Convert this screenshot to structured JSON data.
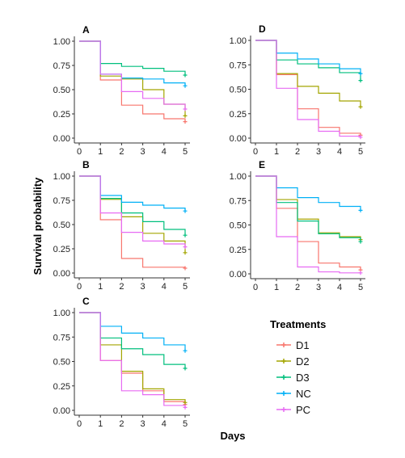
{
  "chart_data": {
    "type": "line",
    "step": true,
    "xlabel": "Days",
    "ylabel": "Survival probability",
    "x_ticks": [
      "0",
      "1",
      "2",
      "3",
      "4",
      "5"
    ],
    "y_ticks": [
      "0.00",
      "0.25",
      "0.50",
      "0.75",
      "1.00"
    ],
    "xlim": [
      0,
      5
    ],
    "ylim": [
      0,
      1
    ],
    "grid": false,
    "legend": {
      "title": "Treatments",
      "placement": "right",
      "entries": [
        {
          "name": "D1",
          "color": "#F8766D"
        },
        {
          "name": "D2",
          "color": "#A3A500"
        },
        {
          "name": "D3",
          "color": "#00BF7D"
        },
        {
          "name": "NC",
          "color": "#00B0F6"
        },
        {
          "name": "PC",
          "color": "#E76BF3"
        }
      ]
    },
    "panels": [
      {
        "label": "A",
        "x": [
          0,
          1,
          2,
          3,
          4,
          5
        ],
        "series": [
          {
            "name": "D1",
            "color": "#F8766D",
            "values": [
              1.0,
              0.6,
              0.34,
              0.25,
              0.2,
              0.17
            ]
          },
          {
            "name": "D2",
            "color": "#A3A500",
            "values": [
              1.0,
              0.64,
              0.61,
              0.5,
              0.35,
              0.23
            ]
          },
          {
            "name": "D3",
            "color": "#00BF7D",
            "values": [
              1.0,
              0.77,
              0.74,
              0.72,
              0.69,
              0.65
            ]
          },
          {
            "name": "NC",
            "color": "#00B0F6",
            "values": [
              1.0,
              0.66,
              0.62,
              0.61,
              0.57,
              0.54
            ]
          },
          {
            "name": "PC",
            "color": "#E76BF3",
            "values": [
              1.0,
              0.66,
              0.48,
              0.41,
              0.35,
              0.3
            ]
          }
        ]
      },
      {
        "label": "B",
        "x": [
          0,
          1,
          2,
          3,
          4,
          5
        ],
        "series": [
          {
            "name": "D1",
            "color": "#F8766D",
            "values": [
              1.0,
              0.55,
              0.15,
              0.06,
              0.06,
              0.05
            ]
          },
          {
            "name": "D2",
            "color": "#A3A500",
            "values": [
              1.0,
              0.76,
              0.58,
              0.41,
              0.33,
              0.21
            ]
          },
          {
            "name": "D3",
            "color": "#00BF7D",
            "values": [
              1.0,
              0.77,
              0.62,
              0.53,
              0.45,
              0.39
            ]
          },
          {
            "name": "NC",
            "color": "#00B0F6",
            "values": [
              1.0,
              0.8,
              0.73,
              0.7,
              0.67,
              0.64
            ]
          },
          {
            "name": "PC",
            "color": "#E76BF3",
            "values": [
              1.0,
              0.62,
              0.42,
              0.33,
              0.3,
              0.27
            ]
          }
        ]
      },
      {
        "label": "C",
        "x": [
          0,
          1,
          2,
          3,
          4,
          5
        ],
        "series": [
          {
            "name": "D1",
            "color": "#F8766D",
            "values": [
              1.0,
              0.51,
              0.38,
              0.2,
              0.09,
              0.06
            ]
          },
          {
            "name": "D2",
            "color": "#A3A500",
            "values": [
              1.0,
              0.67,
              0.4,
              0.22,
              0.11,
              0.08
            ]
          },
          {
            "name": "D3",
            "color": "#00BF7D",
            "values": [
              1.0,
              0.74,
              0.63,
              0.57,
              0.47,
              0.43
            ]
          },
          {
            "name": "NC",
            "color": "#00B0F6",
            "values": [
              1.0,
              0.86,
              0.79,
              0.74,
              0.67,
              0.61
            ]
          },
          {
            "name": "PC",
            "color": "#E76BF3",
            "values": [
              1.0,
              0.51,
              0.2,
              0.16,
              0.05,
              0.03
            ]
          }
        ]
      },
      {
        "label": "D",
        "x": [
          0,
          1,
          2,
          3,
          4,
          5
        ],
        "series": [
          {
            "name": "D1",
            "color": "#F8766D",
            "values": [
              1.0,
              0.65,
              0.3,
              0.11,
              0.05,
              0.03
            ]
          },
          {
            "name": "D2",
            "color": "#A3A500",
            "values": [
              1.0,
              0.66,
              0.53,
              0.46,
              0.38,
              0.32
            ]
          },
          {
            "name": "D3",
            "color": "#00BF7D",
            "values": [
              1.0,
              0.8,
              0.76,
              0.72,
              0.67,
              0.59
            ]
          },
          {
            "name": "NC",
            "color": "#00B0F6",
            "values": [
              1.0,
              0.87,
              0.81,
              0.76,
              0.71,
              0.66
            ]
          },
          {
            "name": "PC",
            "color": "#E76BF3",
            "values": [
              1.0,
              0.51,
              0.19,
              0.07,
              0.02,
              0.01
            ]
          }
        ]
      },
      {
        "label": "E",
        "x": [
          0,
          1,
          2,
          3,
          4,
          5
        ],
        "series": [
          {
            "name": "D1",
            "color": "#F8766D",
            "values": [
              1.0,
              0.67,
              0.33,
              0.11,
              0.07,
              0.04
            ]
          },
          {
            "name": "D2",
            "color": "#A3A500",
            "values": [
              1.0,
              0.76,
              0.56,
              0.42,
              0.38,
              0.35
            ]
          },
          {
            "name": "D3",
            "color": "#00BF7D",
            "values": [
              1.0,
              0.73,
              0.54,
              0.41,
              0.37,
              0.33
            ]
          },
          {
            "name": "NC",
            "color": "#00B0F6",
            "values": [
              1.0,
              0.88,
              0.78,
              0.73,
              0.69,
              0.65
            ]
          },
          {
            "name": "PC",
            "color": "#E76BF3",
            "values": [
              1.0,
              0.38,
              0.07,
              0.02,
              0.01,
              0.01
            ]
          }
        ]
      }
    ]
  }
}
